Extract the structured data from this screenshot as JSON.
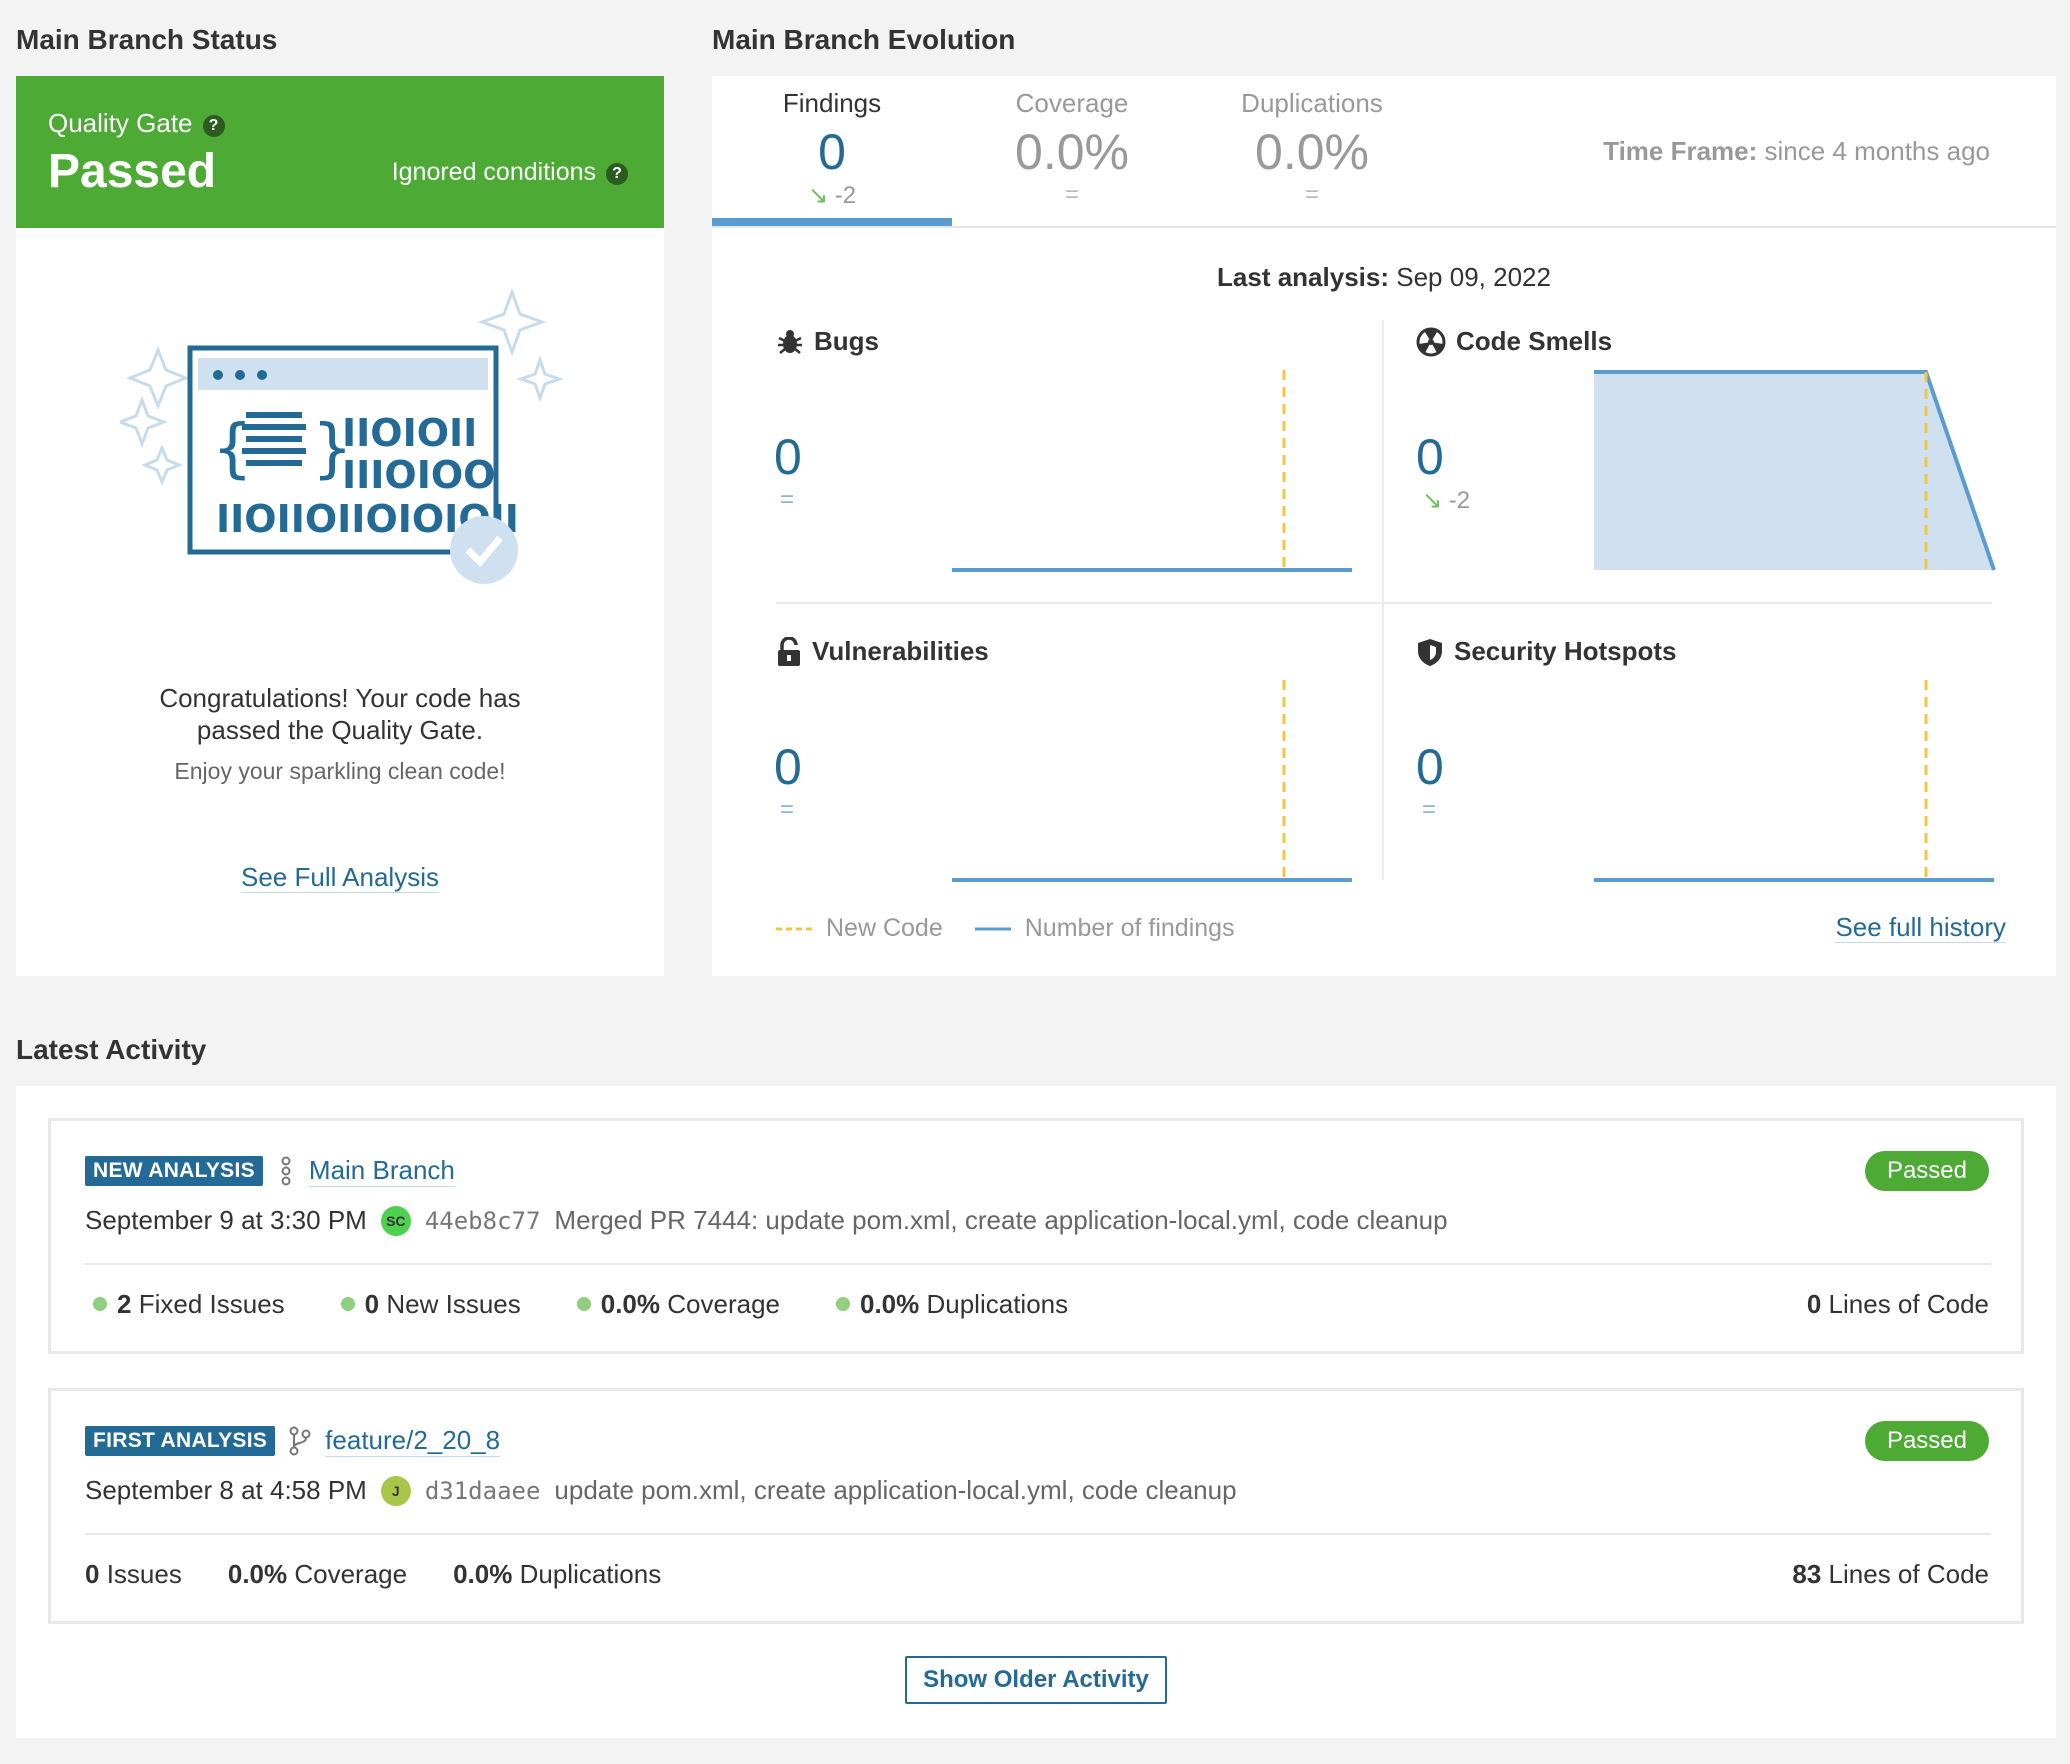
{
  "status": {
    "title": "Main Branch Status",
    "quality_gate_label": "Quality Gate",
    "quality_gate_status": "Passed",
    "ignored_conditions": "Ignored conditions",
    "congrats_line1": "Congratulations! Your code has",
    "congrats_line2": "passed the Quality Gate.",
    "enjoy": "Enjoy your sparkling clean code!",
    "see_full_analysis": "See Full Analysis",
    "colors": {
      "passed": "#4caa35",
      "accent": "#236a97"
    }
  },
  "evolution": {
    "title": "Main Branch Evolution",
    "tabs": [
      {
        "label": "Findings",
        "value": "0",
        "delta": "-2"
      },
      {
        "label": "Coverage",
        "value": "0.0%",
        "delta": "="
      },
      {
        "label": "Duplications",
        "value": "0.0%",
        "delta": "="
      }
    ],
    "time_frame_label": "Time Frame:",
    "time_frame_value": "since 4 months ago",
    "last_analysis_label": "Last analysis:",
    "last_analysis_value": "Sep 09, 2022",
    "metrics": [
      {
        "title": "Bugs",
        "icon": "bug-icon",
        "value": "0",
        "delta": "="
      },
      {
        "title": "Code Smells",
        "icon": "radiation-icon",
        "value": "0",
        "delta": "-2"
      },
      {
        "title": "Vulnerabilities",
        "icon": "lock-icon",
        "value": "0",
        "delta": "="
      },
      {
        "title": "Security Hotspots",
        "icon": "shield-icon",
        "value": "0",
        "delta": "="
      }
    ],
    "legend_new_code": "New Code",
    "legend_findings": "Number of findings",
    "see_full_history": "See full history"
  },
  "activity": {
    "title": "Latest Activity",
    "items": [
      {
        "badge": "NEW ANALYSIS",
        "branch": "Main Branch",
        "status": "Passed",
        "date": "September 9 at 3:30 PM",
        "avatar": "SC",
        "hash": "44eb8c77",
        "message": "Merged PR 7444: update pom.xml, create application-local.yml, code cleanup",
        "stats": [
          {
            "value": "2",
            "label": "Fixed Issues"
          },
          {
            "value": "0",
            "label": "New Issues"
          },
          {
            "value": "0.0%",
            "label": "Coverage"
          },
          {
            "value": "0.0%",
            "label": "Duplications"
          }
        ],
        "loc_value": "0",
        "loc_label": "Lines of Code"
      },
      {
        "badge": "FIRST ANALYSIS",
        "branch": "feature/2_20_8",
        "status": "Passed",
        "date": "September 8 at 4:58 PM",
        "avatar": "J",
        "hash": "d31daaee",
        "message": "update pom.xml, create application-local.yml, code cleanup",
        "stats": [
          {
            "value": "0",
            "label": "Issues"
          },
          {
            "value": "0.0%",
            "label": "Coverage"
          },
          {
            "value": "0.0%",
            "label": "Duplications"
          }
        ],
        "loc_value": "83",
        "loc_label": "Lines of Code"
      }
    ],
    "show_older": "Show Older Activity"
  }
}
